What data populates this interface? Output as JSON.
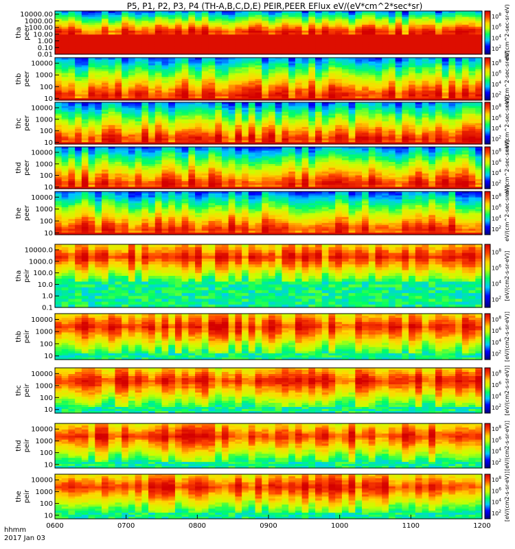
{
  "chart_data": {
    "type": "heatmap",
    "title": "P5, P1, P2, P3, P4 (TH-A,B,C,D,E) PEIR,PEER EFlux eV/(eV*cm^2*sec*sr)",
    "x": {
      "range_hhmm": [
        600,
        1200
      ],
      "ticks": [
        "0600",
        "0700",
        "0800",
        "0900",
        "1000",
        "1100",
        "1200"
      ],
      "label_line1": "hhmm",
      "label_line2": "2017 Jan 03"
    },
    "colorbar_ticks": [
      "10^8",
      "10^6",
      "10^4",
      "10^2"
    ],
    "colorbar_label_peer": "eV/(cm^2-sec-sr-eV)",
    "colorbar_label_peir": "[eV/(cm2-s-sr-eV)]",
    "colorbar_label_bottom": "[eV/(cm2-s-sr-eV)]",
    "panels": [
      {
        "probe": "tha",
        "species": "peer",
        "yticks": [
          "10000.00",
          "1000.00",
          "100.00",
          "10.00",
          "1.00",
          "0.10",
          "0.01"
        ],
        "yrange_eV": [
          0.01,
          30000
        ]
      },
      {
        "probe": "thb",
        "species": "peer",
        "yticks": [
          "10000",
          "1000",
          "100",
          "10"
        ],
        "yrange_eV": [
          7,
          30000
        ]
      },
      {
        "probe": "thc",
        "species": "peer",
        "yticks": [
          "10000",
          "1000",
          "100",
          "10"
        ],
        "yrange_eV": [
          7,
          30000
        ]
      },
      {
        "probe": "thd",
        "species": "peer",
        "yticks": [
          "10000",
          "1000",
          "100",
          "10"
        ],
        "yrange_eV": [
          7,
          30000
        ]
      },
      {
        "probe": "the",
        "species": "peer",
        "yticks": [
          "10000",
          "1000",
          "100",
          "10"
        ],
        "yrange_eV": [
          7,
          30000
        ]
      },
      {
        "probe": "tha",
        "species": "peir",
        "yticks": [
          "10000.0",
          "1000.0",
          "100.0",
          "10.0",
          "1.0",
          "0.1"
        ],
        "yrange_eV": [
          0.1,
          30000
        ]
      },
      {
        "probe": "thb",
        "species": "peir",
        "yticks": [
          "10000",
          "1000",
          "100",
          "10"
        ],
        "yrange_eV": [
          5,
          30000
        ]
      },
      {
        "probe": "thc",
        "species": "peir",
        "yticks": [
          "10000",
          "1000",
          "100",
          "10"
        ],
        "yrange_eV": [
          5,
          30000
        ]
      },
      {
        "probe": "thd",
        "species": "peir",
        "yticks": [
          "10000",
          "1000",
          "100",
          "10"
        ],
        "yrange_eV": [
          5,
          30000
        ]
      },
      {
        "probe": "the",
        "species": "peir",
        "yticks": [
          "10000",
          "1000",
          "100",
          "10"
        ],
        "yrange_eV": [
          5,
          30000
        ]
      }
    ]
  }
}
